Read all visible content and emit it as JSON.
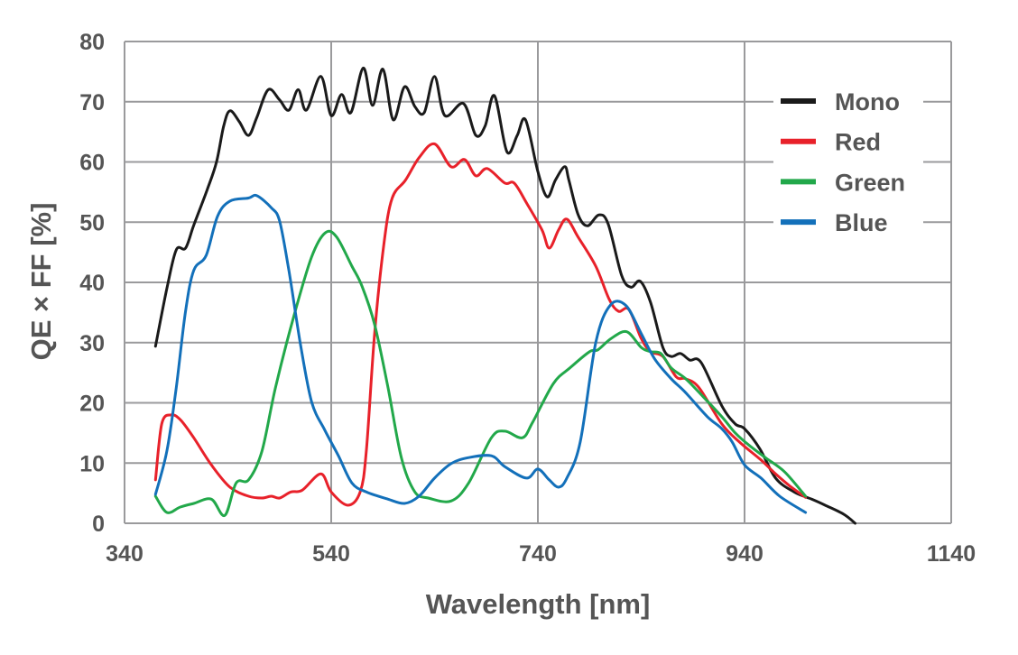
{
  "chart_data": {
    "type": "line",
    "title": "",
    "xlabel": "Wavelength [nm]",
    "ylabel": "QE × FF [%]",
    "xlim": [
      340,
      1140
    ],
    "ylim": [
      0,
      80
    ],
    "xticks": [
      340,
      540,
      740,
      940,
      1140
    ],
    "yticks": [
      0,
      10,
      20,
      30,
      40,
      50,
      60,
      70,
      80
    ],
    "grid": true,
    "legend_position": "top-right",
    "series": [
      {
        "name": "Mono",
        "color": "#1a1a1a",
        "points": [
          [
            370,
            29.4
          ],
          [
            381,
            39
          ],
          [
            390,
            45.4
          ],
          [
            399,
            45.7
          ],
          [
            407,
            49.5
          ],
          [
            420,
            55.4
          ],
          [
            429,
            60
          ],
          [
            436,
            66
          ],
          [
            442,
            68.5
          ],
          [
            451,
            66.7
          ],
          [
            460,
            64.4
          ],
          [
            468,
            67.4
          ],
          [
            479,
            72
          ],
          [
            490,
            70.3
          ],
          [
            499,
            68.6
          ],
          [
            508,
            72
          ],
          [
            516,
            68.6
          ],
          [
            530,
            74.2
          ],
          [
            540,
            67.7
          ],
          [
            550,
            71.2
          ],
          [
            559,
            68.2
          ],
          [
            571,
            75.6
          ],
          [
            580,
            69.4
          ],
          [
            590,
            75.4
          ],
          [
            600,
            67
          ],
          [
            611,
            72.5
          ],
          [
            621,
            69.2
          ],
          [
            630,
            68.2
          ],
          [
            640,
            74.2
          ],
          [
            650,
            67.7
          ],
          [
            668,
            69.7
          ],
          [
            680,
            64.4
          ],
          [
            689,
            66
          ],
          [
            698,
            71
          ],
          [
            710,
            61.7
          ],
          [
            720,
            64.4
          ],
          [
            728,
            67
          ],
          [
            740,
            58.4
          ],
          [
            749,
            54.2
          ],
          [
            757,
            57
          ],
          [
            766,
            59.2
          ],
          [
            770,
            57
          ],
          [
            779,
            51.2
          ],
          [
            788,
            49.4
          ],
          [
            799,
            51.2
          ],
          [
            808,
            49.7
          ],
          [
            821,
            41.2
          ],
          [
            830,
            39.2
          ],
          [
            839,
            40.2
          ],
          [
            849,
            36.7
          ],
          [
            861,
            29.2
          ],
          [
            869,
            27.7
          ],
          [
            878,
            28.2
          ],
          [
            887,
            27.1
          ],
          [
            898,
            26.7
          ],
          [
            918,
            19.5
          ],
          [
            931,
            16.5
          ],
          [
            940,
            15.7
          ],
          [
            955,
            12.3
          ],
          [
            970,
            7.5
          ],
          [
            988,
            5.2
          ],
          [
            1005,
            4
          ],
          [
            1018,
            3
          ],
          [
            1036,
            1.5
          ],
          [
            1047,
            0
          ]
        ]
      },
      {
        "name": "Red",
        "color": "#e8212a",
        "points": [
          [
            370,
            7.2
          ],
          [
            376,
            16.5
          ],
          [
            385,
            18
          ],
          [
            394,
            17.2
          ],
          [
            407,
            14.2
          ],
          [
            424,
            9.7
          ],
          [
            442,
            6
          ],
          [
            460,
            4.5
          ],
          [
            473,
            4.2
          ],
          [
            482,
            4.5
          ],
          [
            490,
            4.2
          ],
          [
            501,
            5.2
          ],
          [
            512,
            5.5
          ],
          [
            530,
            8.2
          ],
          [
            540,
            5.2
          ],
          [
            556,
            3
          ],
          [
            568,
            5.2
          ],
          [
            574,
            12
          ],
          [
            582,
            31.5
          ],
          [
            591,
            46.4
          ],
          [
            599,
            54
          ],
          [
            612,
            57
          ],
          [
            625,
            60.7
          ],
          [
            640,
            63
          ],
          [
            656,
            59.2
          ],
          [
            669,
            60.4
          ],
          [
            680,
            57.7
          ],
          [
            691,
            58.9
          ],
          [
            708,
            56.5
          ],
          [
            717,
            56.5
          ],
          [
            729,
            53.2
          ],
          [
            744,
            48.7
          ],
          [
            751,
            45.7
          ],
          [
            760,
            48.7
          ],
          [
            768,
            50.5
          ],
          [
            779,
            47.5
          ],
          [
            796,
            42.7
          ],
          [
            809,
            37.2
          ],
          [
            818,
            35.2
          ],
          [
            828,
            35.5
          ],
          [
            840,
            30.7
          ],
          [
            849,
            28.5
          ],
          [
            861,
            27.7
          ],
          [
            874,
            24.3
          ],
          [
            883,
            24
          ],
          [
            896,
            22.5
          ],
          [
            918,
            16.5
          ],
          [
            935,
            13.5
          ],
          [
            956,
            10.5
          ],
          [
            970,
            8.2
          ],
          [
            983,
            6.3
          ],
          [
            999,
            4.3
          ]
        ]
      },
      {
        "name": "Green",
        "color": "#22a84a",
        "points": [
          [
            370,
            4.5
          ],
          [
            381,
            1.8
          ],
          [
            394,
            2.7
          ],
          [
            407,
            3.3
          ],
          [
            424,
            4
          ],
          [
            437,
            1.3
          ],
          [
            448,
            6.7
          ],
          [
            460,
            7.2
          ],
          [
            473,
            12
          ],
          [
            486,
            22.5
          ],
          [
            504,
            34.5
          ],
          [
            521,
            44.2
          ],
          [
            534,
            48.2
          ],
          [
            545,
            47.6
          ],
          [
            560,
            42.7
          ],
          [
            570,
            39.3
          ],
          [
            582,
            33
          ],
          [
            595,
            22.5
          ],
          [
            608,
            10.8
          ],
          [
            621,
            5.2
          ],
          [
            634,
            4.2
          ],
          [
            656,
            3.7
          ],
          [
            673,
            6.7
          ],
          [
            695,
            14.2
          ],
          [
            708,
            15.3
          ],
          [
            725,
            14.2
          ],
          [
            735,
            16.8
          ],
          [
            755,
            23.2
          ],
          [
            771,
            25.8
          ],
          [
            790,
            28.5
          ],
          [
            798,
            28.8
          ],
          [
            811,
            30.7
          ],
          [
            826,
            31.8
          ],
          [
            840,
            29.2
          ],
          [
            849,
            28.5
          ],
          [
            859,
            28.2
          ],
          [
            869,
            25.8
          ],
          [
            883,
            24
          ],
          [
            900,
            21
          ],
          [
            918,
            17.7
          ],
          [
            931,
            15
          ],
          [
            944,
            13
          ],
          [
            961,
            10.8
          ],
          [
            979,
            8.5
          ],
          [
            999,
            4.5
          ]
        ]
      },
      {
        "name": "Blue",
        "color": "#1370ba",
        "points": [
          [
            370,
            4.8
          ],
          [
            381,
            12
          ],
          [
            390,
            22.5
          ],
          [
            399,
            35.2
          ],
          [
            407,
            42
          ],
          [
            419,
            44.5
          ],
          [
            430,
            51
          ],
          [
            442,
            53.5
          ],
          [
            460,
            54
          ],
          [
            468,
            54.4
          ],
          [
            482,
            52.4
          ],
          [
            490,
            50.2
          ],
          [
            499,
            42
          ],
          [
            510,
            30
          ],
          [
            521,
            20.2
          ],
          [
            534,
            15.4
          ],
          [
            547,
            11.2
          ],
          [
            560,
            6.7
          ],
          [
            574,
            5.2
          ],
          [
            595,
            4
          ],
          [
            611,
            3.3
          ],
          [
            625,
            4.5
          ],
          [
            640,
            7.5
          ],
          [
            656,
            9.9
          ],
          [
            673,
            10.9
          ],
          [
            695,
            11.2
          ],
          [
            708,
            9.4
          ],
          [
            729,
            7.5
          ],
          [
            740,
            9
          ],
          [
            751,
            7.2
          ],
          [
            760,
            6
          ],
          [
            768,
            7.5
          ],
          [
            781,
            13.5
          ],
          [
            796,
            30
          ],
          [
            810,
            36.2
          ],
          [
            825,
            36.2
          ],
          [
            840,
            31.5
          ],
          [
            853,
            27.3
          ],
          [
            869,
            24
          ],
          [
            883,
            21.7
          ],
          [
            904,
            17.7
          ],
          [
            918,
            15.7
          ],
          [
            928,
            13.5
          ],
          [
            940,
            9.7
          ],
          [
            956,
            7.5
          ],
          [
            974,
            4.5
          ],
          [
            999,
            1.8
          ]
        ]
      }
    ]
  }
}
